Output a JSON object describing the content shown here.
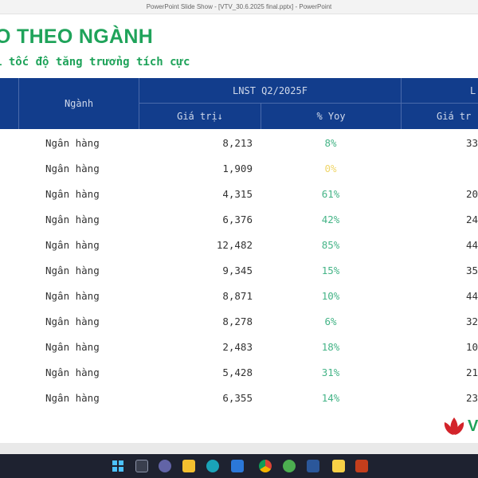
{
  "window": {
    "title": "PowerPoint Slide Show - [VTV_30.6.2025 final.pptx] - PowerPoint"
  },
  "slide": {
    "title": "O THEO NGÀNH",
    "subtitle": "i tốc độ tăng trưởng tích cực"
  },
  "table": {
    "headers": {
      "sector": "Ngành",
      "group1": "LNST Q2/2025F",
      "group2": "L",
      "value": "Giá trị↓",
      "yoy": "% Yoy",
      "value2": "Giá tr"
    },
    "rows": [
      {
        "sector": "Ngân hàng",
        "value": "8,213",
        "yoy": "8%",
        "next": "33"
      },
      {
        "sector": "Ngân hàng",
        "value": "1,909",
        "yoy": "0%",
        "next": ""
      },
      {
        "sector": "Ngân hàng",
        "value": "4,315",
        "yoy": "61%",
        "next": "20"
      },
      {
        "sector": "Ngân hàng",
        "value": "6,376",
        "yoy": "42%",
        "next": "24"
      },
      {
        "sector": "Ngân hàng",
        "value": "12,482",
        "yoy": "85%",
        "next": "44"
      },
      {
        "sector": "Ngân hàng",
        "value": "9,345",
        "yoy": "15%",
        "next": "35"
      },
      {
        "sector": "Ngân hàng",
        "value": "8,871",
        "yoy": "10%",
        "next": "44"
      },
      {
        "sector": "Ngân hàng",
        "value": "8,278",
        "yoy": "6%",
        "next": "32"
      },
      {
        "sector": "Ngân hàng",
        "value": "2,483",
        "yoy": "18%",
        "next": "10"
      },
      {
        "sector": "Ngân hàng",
        "value": "5,428",
        "yoy": "31%",
        "next": "21"
      },
      {
        "sector": "Ngân hàng",
        "value": "6,355",
        "yoy": "14%",
        "next": "23"
      }
    ]
  },
  "logo": {
    "letter": "V",
    "icon": "lotus-logo-icon"
  },
  "taskbar": {
    "icons": [
      "windows-start-icon",
      "task-view-icon",
      "teams-icon",
      "file-explorer-icon",
      "edge-icon",
      "store-icon",
      "chrome-icon",
      "green-app-icon",
      "word-icon",
      "sticky-notes-icon",
      "powerpoint-icon"
    ]
  },
  "colors": {
    "accent_green": "#1fa35a",
    "header_blue": "#123d8c",
    "yoy_green": "#45b487",
    "yoy_zero": "#f0d66a"
  }
}
